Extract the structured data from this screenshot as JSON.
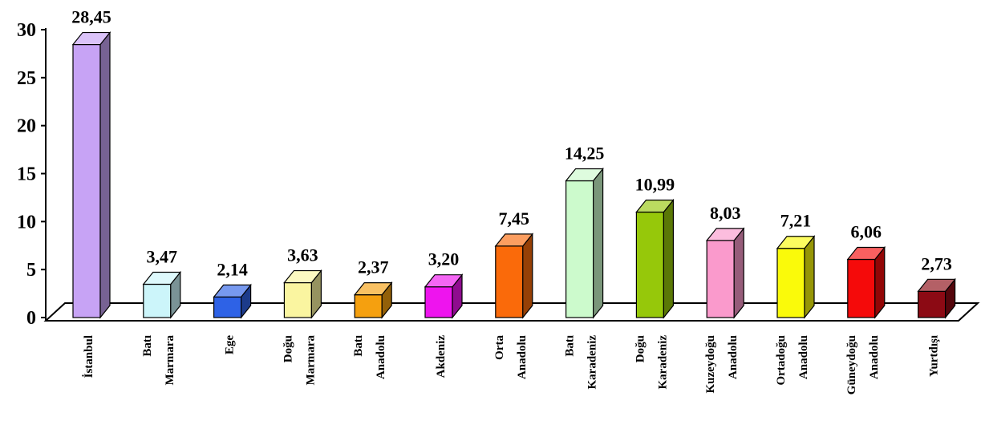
{
  "chart_data": {
    "type": "bar",
    "title": "",
    "xlabel": "",
    "ylabel": "",
    "ylim": [
      0,
      30
    ],
    "yticks": [
      "0",
      "5",
      "10",
      "15",
      "20",
      "25",
      "30"
    ],
    "grid": false,
    "legend": "none",
    "style": "3d-column",
    "categories": [
      {
        "lines": [
          "İstanbul"
        ],
        "value": 28.45,
        "label": "28,45",
        "color": "#c7a3f5"
      },
      {
        "lines": [
          "Batı",
          "Marmara"
        ],
        "value": 3.47,
        "label": "3,47",
        "color": "#ccf5fa"
      },
      {
        "lines": [
          "Ege"
        ],
        "value": 2.14,
        "label": "2,14",
        "color": "#2e62e6"
      },
      {
        "lines": [
          "Doğu",
          "Marmara"
        ],
        "value": 3.63,
        "label": "3,63",
        "color": "#faf5a0"
      },
      {
        "lines": [
          "Batı",
          "Anadolu"
        ],
        "value": 2.37,
        "label": "2,37",
        "color": "#f5a00f"
      },
      {
        "lines": [
          "Akdeniz"
        ],
        "value": 3.2,
        "label": "3,20",
        "color": "#ee14ee"
      },
      {
        "lines": [
          "Orta",
          "Anadolu"
        ],
        "value": 7.45,
        "label": "7,45",
        "color": "#fa6a0a"
      },
      {
        "lines": [
          "Batı",
          "Karadeniz"
        ],
        "value": 14.25,
        "label": "14,25",
        "color": "#ccfacc"
      },
      {
        "lines": [
          "Doğu",
          "Karadeniz"
        ],
        "value": 10.99,
        "label": "10,99",
        "color": "#96c80a"
      },
      {
        "lines": [
          "Kuzeydoğu",
          "Anadolu"
        ],
        "value": 8.03,
        "label": "8,03",
        "color": "#fa9acc"
      },
      {
        "lines": [
          "Ortadoğu",
          "Anadolu"
        ],
        "value": 7.21,
        "label": "7,21",
        "color": "#fafa0a"
      },
      {
        "lines": [
          "Güneydoğu",
          "Anadolu"
        ],
        "value": 6.06,
        "label": "6,06",
        "color": "#f50a0a"
      },
      {
        "lines": [
          "Yurtdışı"
        ],
        "value": 2.73,
        "label": "2,73",
        "color": "#8c0a14"
      }
    ]
  }
}
